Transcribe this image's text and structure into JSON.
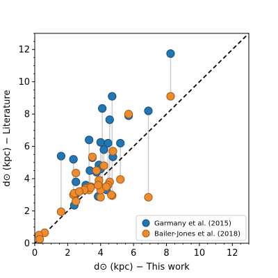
{
  "chart_data": {
    "type": "scatter",
    "xlabel": "d⊙ (kpc) − This work",
    "ylabel": "d⊙ (kpc) − Literature",
    "xlim": [
      0,
      13
    ],
    "ylim": [
      0,
      13
    ],
    "xticks": [
      0,
      2,
      4,
      6,
      8,
      10,
      12
    ],
    "yticks": [
      0,
      2,
      4,
      6,
      8,
      10,
      12
    ],
    "minor_ticks": true,
    "grid": false,
    "legend_position": "bottom-right",
    "reference_line": {
      "style": "dashed",
      "color": "#000000",
      "x": [
        0,
        13
      ],
      "y": [
        0,
        13
      ]
    },
    "connector_color": "#cccccc",
    "series": [
      {
        "name": "Garmany et al. (2015)",
        "color": "#1f77b4",
        "edge": "#1a4a7a",
        "x": [
          8.25,
          4.7,
          4.1,
          6.9,
          5.7,
          4.55,
          3.3,
          4.0,
          4.45,
          5.2,
          4.2,
          1.6,
          2.35,
          3.5,
          3.75,
          4.75,
          3.9,
          2.5,
          3.35,
          4.0,
          3.1,
          3.4,
          2.5,
          4.35,
          3.85,
          2.4
        ],
        "y": [
          11.75,
          9.1,
          8.35,
          8.2,
          7.9,
          7.65,
          6.4,
          6.25,
          6.2,
          6.2,
          5.8,
          5.4,
          5.2,
          5.3,
          4.4,
          5.35,
          4.85,
          3.8,
          4.5,
          4.6,
          3.6,
          3.5,
          3.05,
          3.3,
          2.9,
          2.35
        ]
      },
      {
        "name": "Bailer-Jones et al. (2018)",
        "color": "#ec8c2f",
        "edge": "#a85a15",
        "x": [
          8.25,
          4.7,
          4.1,
          6.9,
          5.7,
          4.55,
          3.3,
          4.0,
          4.45,
          5.2,
          4.2,
          1.6,
          2.35,
          3.5,
          3.75,
          4.75,
          3.9,
          2.5,
          3.35,
          4.0,
          3.1,
          3.4,
          2.5,
          4.35,
          3.85,
          2.4,
          0.6,
          0.25,
          0.3,
          3.0,
          4.65,
          2.7
        ],
        "y": [
          9.1,
          2.95,
          3.45,
          2.85,
          8.0,
          3.8,
          3.3,
          2.85,
          3.6,
          3.95,
          4.8,
          1.95,
          3.0,
          5.35,
          4.5,
          5.7,
          3.9,
          4.35,
          3.5,
          3.3,
          3.4,
          3.45,
          2.6,
          3.5,
          3.6,
          3.1,
          0.65,
          0.5,
          0.25,
          3.3,
          3.0,
          3.2
        ]
      }
    ],
    "connectors": [
      [
        8.25,
        11.75,
        9.1
      ],
      [
        4.7,
        9.1,
        2.95
      ],
      [
        4.1,
        8.35,
        3.45
      ],
      [
        6.9,
        8.2,
        2.85
      ],
      [
        4.55,
        7.65,
        3.8
      ],
      [
        3.3,
        6.4,
        3.3
      ],
      [
        4.0,
        6.25,
        2.85
      ],
      [
        4.45,
        6.2,
        3.6
      ],
      [
        5.2,
        6.2,
        3.95
      ],
      [
        4.2,
        5.8,
        4.8
      ],
      [
        1.6,
        5.4,
        1.95
      ],
      [
        2.35,
        5.2,
        3.0
      ],
      [
        4.75,
        5.35,
        5.7
      ],
      [
        3.9,
        4.85,
        3.9
      ],
      [
        2.5,
        3.8,
        4.35
      ],
      [
        3.35,
        4.5,
        3.5
      ],
      [
        4.0,
        4.6,
        3.3
      ],
      [
        4.35,
        3.3,
        3.5
      ],
      [
        2.4,
        2.35,
        3.1
      ]
    ]
  }
}
